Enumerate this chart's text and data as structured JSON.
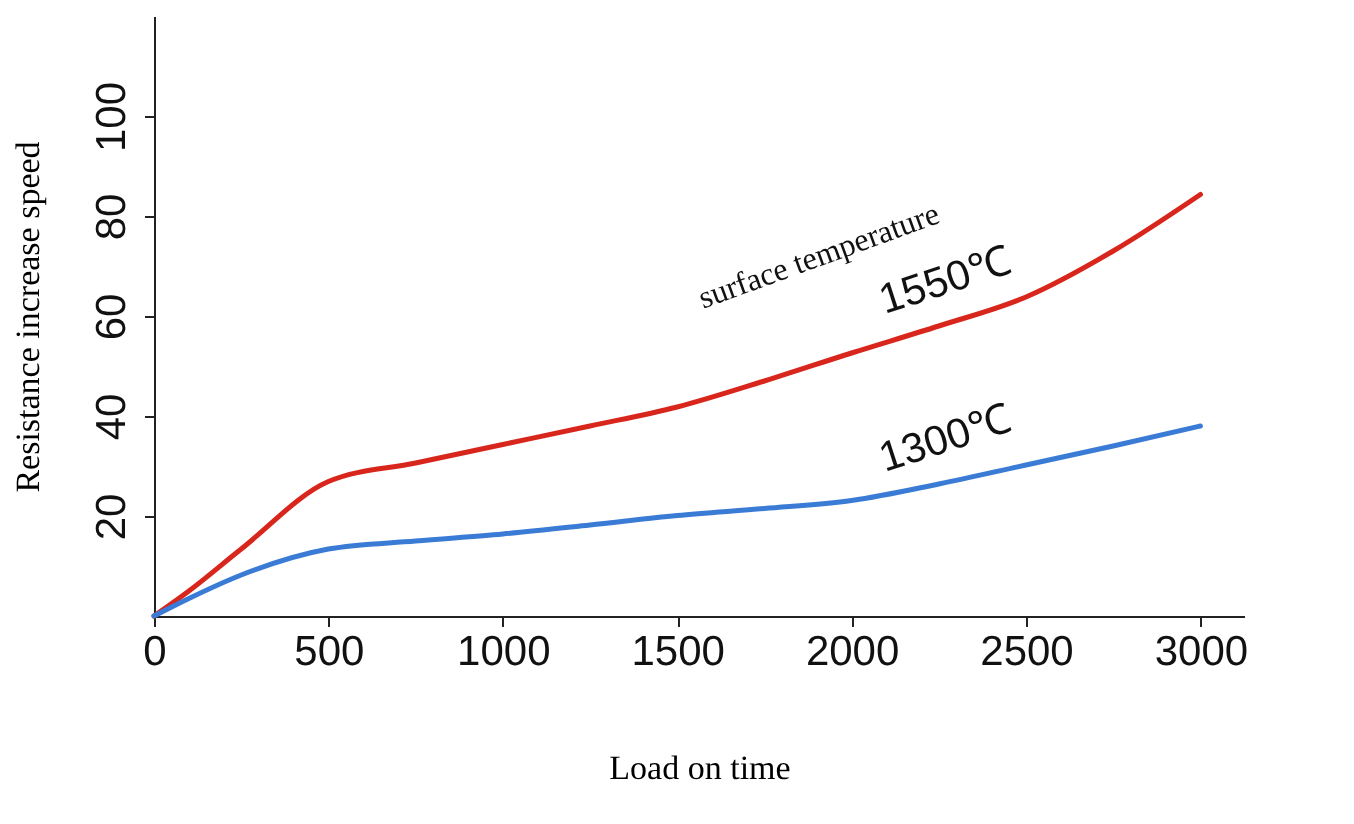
{
  "chart_data": {
    "type": "line",
    "xlabel": "Load on time",
    "ylabel": "Resistance increase speed",
    "xlim": [
      0,
      3125
    ],
    "ylim": [
      0,
      120
    ],
    "xticks": [
      0,
      500,
      1000,
      1500,
      2000,
      2500,
      3000
    ],
    "yticks": [
      20,
      40,
      60,
      80,
      100
    ],
    "grid": false,
    "marker": "none",
    "line_style": "solid",
    "annotations": [
      "surface temperature"
    ],
    "series": [
      {
        "name": "1550℃",
        "color": "#d9261c",
        "x": [
          0,
          100,
          250,
          500,
          750,
          1000,
          1250,
          1500,
          1750,
          2000,
          2250,
          2500,
          2750,
          3000
        ],
        "values": [
          0,
          5,
          13.4,
          26.9,
          30.6,
          34.3,
          38,
          41.8,
          47,
          52.6,
          58,
          63.8,
          73,
          84.3
        ]
      },
      {
        "name": "1300℃",
        "color": "#3a7bd5",
        "x": [
          0,
          100,
          250,
          500,
          750,
          1000,
          1250,
          1500,
          1750,
          2000,
          2250,
          2500,
          2750,
          3000
        ],
        "values": [
          0,
          3.5,
          8.2,
          13.4,
          15,
          16.4,
          18.2,
          20.1,
          21.5,
          23.1,
          26.4,
          30.2,
          34,
          38
        ]
      }
    ]
  }
}
